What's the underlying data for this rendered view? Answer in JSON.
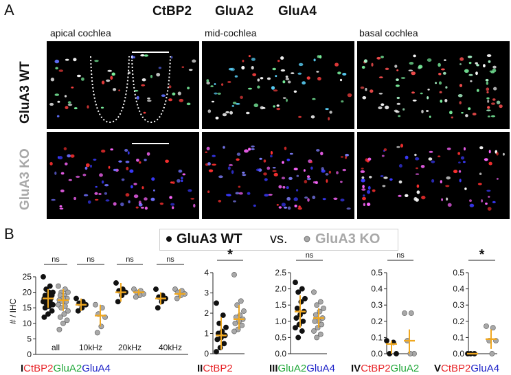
{
  "figure": {
    "panel_a": "A",
    "panel_b": "B",
    "channels": [
      {
        "label": "CtBP2",
        "color": "#e8262a"
      },
      {
        "label": "GluA2",
        "color": "#21a83a"
      },
      {
        "label": "GluA4",
        "color": "#1d22c8"
      }
    ],
    "regions": [
      "apical cochlea",
      "mid-cochlea",
      "basal cochlea"
    ],
    "rows": [
      {
        "label": "GluA3 WT",
        "color": "#111111"
      },
      {
        "label": "GluA3 KO",
        "color": "#a8a8a8"
      }
    ],
    "legend": {
      "wt": "GluA3 WT",
      "vs": "vs.",
      "ko": "GluA3 KO"
    },
    "colors": {
      "wt_dot": "#111111",
      "ko_dot": "#a8a8a8",
      "median_bar": "#f0a820"
    }
  },
  "chart_data": [
    {
      "type": "scatter",
      "panel": "I",
      "ylabel": "# / IHC",
      "ylim": [
        0,
        25
      ],
      "yticks": [
        "0",
        "5",
        "10",
        "15",
        "20",
        "25"
      ],
      "groups": [
        {
          "label": "all",
          "sig": "ns",
          "wt": [
            25,
            22,
            21,
            20,
            20,
            19,
            19,
            18.5,
            18,
            18,
            17.5,
            17,
            17,
            16.5,
            16,
            15.5,
            15,
            14,
            13,
            12
          ],
          "ko": [
            22,
            21,
            20,
            20,
            19,
            19,
            18,
            18,
            17.5,
            17,
            17,
            16,
            15.5,
            15,
            14,
            13,
            12,
            11,
            10,
            8
          ],
          "wt_median": 18,
          "wt_range": [
            15,
            21
          ],
          "ko_median": 17.5,
          "ko_range": [
            14,
            21
          ]
        },
        {
          "label": "10kHz",
          "sig": "ns",
          "wt": [
            18,
            17,
            16.5,
            16,
            15,
            14
          ],
          "ko": [
            16,
            15,
            13,
            12,
            9,
            7
          ],
          "wt_median": 16,
          "wt_range": [
            14,
            18
          ],
          "ko_median": 12.5,
          "ko_range": [
            9,
            16
          ]
        },
        {
          "label": "20kHz",
          "sig": "ns",
          "wt": [
            23,
            21,
            20.5,
            20,
            19,
            17
          ],
          "ko": [
            21,
            20.5,
            20,
            19.5,
            19,
            18.5
          ],
          "wt_median": 20,
          "wt_range": [
            17,
            23
          ],
          "ko_median": 20,
          "ko_range": [
            19,
            21
          ]
        },
        {
          "label": "40kHz",
          "sig": "ns",
          "wt": [
            21,
            19,
            18.5,
            18,
            17,
            15
          ],
          "ko": [
            21,
            20.5,
            20,
            19.5,
            19,
            18
          ],
          "wt_median": 18,
          "wt_range": [
            16,
            20
          ],
          "ko_median": 19.5,
          "ko_range": [
            18,
            21
          ]
        }
      ],
      "roman": "I",
      "caption": [
        {
          "text": "CtBP2",
          "color": "#e8262a"
        },
        {
          "text": "GluA2",
          "color": "#21a83a"
        },
        {
          "text": "GluA4",
          "color": "#1d22c8"
        }
      ]
    },
    {
      "type": "scatter",
      "panel": "II",
      "roman": "II",
      "sig": "*",
      "ylim": [
        0,
        4
      ],
      "yticks": [
        "0",
        "1",
        "2",
        "3",
        "4"
      ],
      "wt": [
        2.5,
        1.9,
        1.5,
        1.3,
        1.1,
        1.0,
        0.9,
        0.8,
        0.7,
        0.5,
        0.3,
        0.1
      ],
      "ko": [
        3.9,
        2.6,
        2.4,
        2.1,
        1.9,
        1.8,
        1.7,
        1.6,
        1.5,
        1.4,
        1.2,
        1.1
      ],
      "wt_median": 0.9,
      "wt_range": [
        0.2,
        1.8
      ],
      "ko_median": 1.7,
      "ko_range": [
        1.2,
        2.4
      ],
      "caption": [
        {
          "text": "CtBP2",
          "color": "#e8262a"
        }
      ]
    },
    {
      "type": "scatter",
      "panel": "III",
      "roman": "III",
      "sig": "ns",
      "ylim": [
        0,
        2.5
      ],
      "yticks": [
        "0.0",
        "0.5",
        "1.0",
        "1.5",
        "2.0",
        "2.5"
      ],
      "wt": [
        2.2,
        2.0,
        1.9,
        1.7,
        1.6,
        1.4,
        1.3,
        1.2,
        1.1,
        1.0,
        0.9,
        0.8,
        0.7,
        0.5
      ],
      "ko": [
        1.9,
        1.6,
        1.5,
        1.4,
        1.3,
        1.2,
        1.1,
        1.0,
        1.0,
        0.9,
        0.8,
        0.7,
        0.6,
        0.5
      ],
      "wt_median": 1.3,
      "wt_range": [
        0.8,
        1.8
      ],
      "ko_median": 1.1,
      "ko_range": [
        0.8,
        1.4
      ],
      "caption": [
        {
          "text": "GluA2",
          "color": "#21a83a"
        },
        {
          "text": "GluA4",
          "color": "#1d22c8"
        }
      ]
    },
    {
      "type": "scatter",
      "panel": "IV",
      "roman": "IV",
      "sig": "ns",
      "ylim": [
        0,
        0.5
      ],
      "yticks": [
        "0.0",
        "0.1",
        "0.2",
        "0.3",
        "0.4",
        "0.5"
      ],
      "wt": [
        0.08,
        0.07,
        0.0,
        0.0
      ],
      "ko": [
        0.25,
        0.25,
        0.08,
        0.0,
        0.0
      ],
      "wt_median": 0.06,
      "wt_range": [
        0.0,
        0.08
      ],
      "ko_median": 0.08,
      "ko_range": [
        0.0,
        0.15
      ],
      "caption": [
        {
          "text": "CtBP2",
          "color": "#e8262a"
        },
        {
          "text": "GluA2",
          "color": "#21a83a"
        }
      ]
    },
    {
      "type": "scatter",
      "panel": "V",
      "roman": "V",
      "sig": "*",
      "ylim": [
        0,
        0.5
      ],
      "yticks": [
        "0.0",
        "0.1",
        "0.2",
        "0.3",
        "0.4",
        "0.5"
      ],
      "wt": [
        0.0,
        0.0,
        0.0
      ],
      "ko": [
        0.17,
        0.16,
        0.08,
        0.08,
        0.0
      ],
      "wt_median": 0.0,
      "wt_range": [
        0.0,
        0.0
      ],
      "ko_median": 0.09,
      "ko_range": [
        0.03,
        0.15
      ],
      "caption": [
        {
          "text": "CtBP2",
          "color": "#e8262a"
        },
        {
          "text": "GluA4",
          "color": "#1d22c8"
        }
      ]
    }
  ]
}
